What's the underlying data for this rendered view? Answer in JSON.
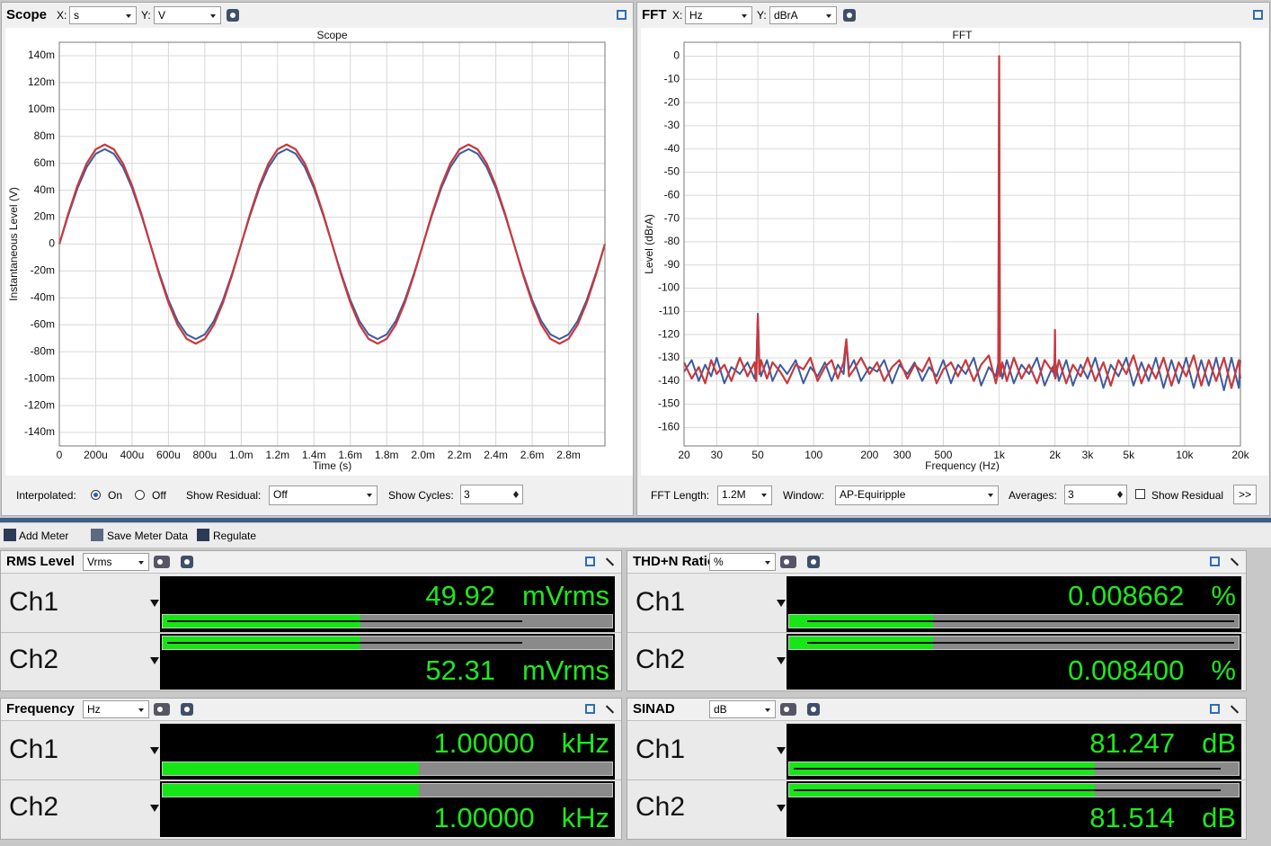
{
  "scope": {
    "title": "Scope",
    "x_label": "X:",
    "x_unit": "s",
    "y_label": "Y:",
    "y_unit": "V",
    "controls": {
      "interpolated": "Interpolated:",
      "on": "On",
      "off": "Off",
      "show_residual": "Show Residual:",
      "residual_value": "Off",
      "show_cycles": "Show Cycles:",
      "cycles_value": "3"
    },
    "chart_data": {
      "type": "line",
      "title": "Scope",
      "x_label": "Time (s)",
      "y_label": "Instantaneous Level (V)",
      "x": [
        0,
        5e-05,
        0.0001,
        0.00015,
        0.0002,
        0.00025,
        0.0003,
        0.00035,
        0.0004,
        0.00045,
        0.0005,
        0.00055,
        0.0006,
        0.00065,
        0.0007,
        0.00075,
        0.0008,
        0.00085,
        0.0009,
        0.00095,
        0.001,
        0.00105,
        0.0011,
        0.00115,
        0.0012,
        0.00125,
        0.0013,
        0.00135,
        0.0014,
        0.00145,
        0.0015,
        0.00155,
        0.0016,
        0.00165,
        0.0017,
        0.00175,
        0.0018,
        0.00185,
        0.0019,
        0.00195,
        0.002,
        0.00205,
        0.0021,
        0.00215,
        0.0022,
        0.00225,
        0.0023,
        0.00235,
        0.0024,
        0.00245,
        0.0025,
        0.00255,
        0.0026,
        0.00265,
        0.0027,
        0.00275,
        0.0028,
        0.00285,
        0.0029,
        0.00295,
        0.003
      ],
      "series": [
        {
          "color": "#3d5aa0",
          "values": [
            0,
            0.0218,
            0.0415,
            0.0571,
            0.0671,
            0.0706,
            0.0671,
            0.0571,
            0.0415,
            0.0218,
            0,
            -0.0218,
            -0.0415,
            -0.0571,
            -0.0671,
            -0.0706,
            -0.0671,
            -0.0571,
            -0.0415,
            -0.0218,
            0,
            0.0218,
            0.0415,
            0.0571,
            0.0671,
            0.0706,
            0.0671,
            0.0571,
            0.0415,
            0.0218,
            0,
            -0.0218,
            -0.0415,
            -0.0571,
            -0.0671,
            -0.0706,
            -0.0671,
            -0.0571,
            -0.0415,
            -0.0218,
            0,
            0.0218,
            0.0415,
            0.0571,
            0.0671,
            0.0706,
            0.0671,
            0.0571,
            0.0415,
            0.0218,
            0,
            -0.0218,
            -0.0415,
            -0.0571,
            -0.0671,
            -0.0706,
            -0.0671,
            -0.0571,
            -0.0415,
            -0.0218,
            0
          ]
        },
        {
          "color": "#c9383c",
          "values": [
            0,
            0.0229,
            0.0435,
            0.0599,
            0.0704,
            0.074,
            0.0704,
            0.0599,
            0.0435,
            0.0229,
            0,
            -0.0229,
            -0.0435,
            -0.0599,
            -0.0704,
            -0.074,
            -0.0704,
            -0.0599,
            -0.0435,
            -0.0229,
            0,
            0.0229,
            0.0435,
            0.0599,
            0.0704,
            0.074,
            0.0704,
            0.0599,
            0.0435,
            0.0229,
            0,
            -0.0229,
            -0.0435,
            -0.0599,
            -0.0704,
            -0.074,
            -0.0704,
            -0.0599,
            -0.0435,
            -0.0229,
            0,
            0.0229,
            0.0435,
            0.0599,
            0.0704,
            0.074,
            0.0704,
            0.0599,
            0.0435,
            0.0229,
            0,
            -0.0229,
            -0.0435,
            -0.0599,
            -0.0704,
            -0.074,
            -0.0704,
            -0.0599,
            -0.0435,
            -0.0229,
            0
          ]
        }
      ],
      "xlim": [
        0,
        0.003
      ],
      "ylim": [
        -0.15,
        0.15
      ],
      "xticks": [
        0,
        {
          "value": 0.0002,
          "label": "200u"
        },
        {
          "value": 0.0004,
          "label": "400u"
        },
        {
          "value": 0.0006,
          "label": "600u"
        },
        {
          "value": 0.0008,
          "label": "800u"
        },
        {
          "value": 0.001,
          "label": "1.0m"
        },
        {
          "value": 0.0012,
          "label": "1.2m"
        },
        {
          "value": 0.0014,
          "label": "1.4m"
        },
        {
          "value": 0.0016,
          "label": "1.6m"
        },
        {
          "value": 0.0018,
          "label": "1.8m"
        },
        {
          "value": 0.002,
          "label": "2.0m"
        },
        {
          "value": 0.0022,
          "label": "2.2m"
        },
        {
          "value": 0.0024,
          "label": "2.4m"
        },
        {
          "value": 0.0026,
          "label": "2.6m"
        },
        {
          "value": 0.0028,
          "label": "2.8m"
        }
      ],
      "yticks": [
        {
          "value": 0.14,
          "label": "140m"
        },
        {
          "value": 0.12,
          "label": "120m"
        },
        {
          "value": 0.1,
          "label": "100m"
        },
        {
          "value": 0.08,
          "label": "80m"
        },
        {
          "value": 0.06,
          "label": "60m"
        },
        {
          "value": 0.04,
          "label": "40m"
        },
        {
          "value": 0.02,
          "label": "20m"
        },
        0,
        {
          "value": -0.02,
          "label": "-20m"
        },
        {
          "value": -0.04,
          "label": "-40m"
        },
        {
          "value": -0.06,
          "label": "-60m"
        },
        {
          "value": -0.08,
          "label": "-80m"
        },
        {
          "value": -0.1,
          "label": "-100m"
        },
        {
          "value": -0.12,
          "label": "-120m"
        },
        {
          "value": -0.14,
          "label": "-140m"
        }
      ],
      "grid": true
    }
  },
  "fft": {
    "title": "FFT",
    "x_label": "X:",
    "x_unit": "Hz",
    "y_label": "Y:",
    "y_unit": "dBrA",
    "controls": {
      "fft_length": "FFT Length:",
      "fft_length_value": "1.2M",
      "window": "Window:",
      "window_value": "AP-Equiripple",
      "averages": "Averages:",
      "averages_value": "3",
      "show_residual": "Show Residual",
      "more": ">>"
    },
    "chart_data": {
      "type": "line",
      "title": "FFT",
      "x_label": "Frequency (Hz)",
      "y_label": "Level (dBrA)",
      "x_scale": "log",
      "x": [
        20,
        22,
        24,
        26,
        28,
        30,
        33,
        36,
        40,
        44,
        48,
        49,
        50,
        51,
        52,
        56,
        60,
        66,
        72,
        80,
        88,
        96,
        105,
        115,
        125,
        135,
        145,
        150,
        155,
        165,
        180,
        200,
        220,
        240,
        265,
        290,
        320,
        350,
        385,
        420,
        460,
        500,
        550,
        600,
        660,
        730,
        800,
        880,
        960,
        990,
        1000,
        1010,
        1040,
        1100,
        1200,
        1320,
        1450,
        1600,
        1760,
        1940,
        1990,
        2000,
        2010,
        2100,
        2300,
        2500,
        2750,
        3000,
        3300,
        3650,
        4000,
        4400,
        4850,
        5300,
        5850,
        6400,
        7000,
        7700,
        8500,
        9300,
        10200,
        11200,
        12300,
        13500,
        14800,
        16300,
        17900,
        19600,
        20000
      ],
      "series": [
        {
          "color": "#3d5aa0",
          "values": [
            -136,
            -131,
            -140,
            -133,
            -138,
            -130,
            -141,
            -134,
            -137,
            -132,
            -139,
            -134,
            -111,
            -133,
            -138,
            -131,
            -140,
            -133,
            -137,
            -131,
            -141,
            -134,
            -138,
            -132,
            -140,
            -133,
            -137,
            -123,
            -135,
            -131,
            -140,
            -134,
            -136,
            -131,
            -141,
            -133,
            -137,
            -132,
            -140,
            -134,
            -138,
            -131,
            -141,
            -133,
            -137,
            -130,
            -142,
            -134,
            -138,
            -132,
            0,
            -133,
            -139,
            -131,
            -141,
            -133,
            -137,
            -130,
            -142,
            -134,
            -138,
            -121,
            -132,
            -140,
            -131,
            -142,
            -133,
            -139,
            -130,
            -143,
            -133,
            -138,
            -130,
            -142,
            -132,
            -140,
            -130,
            -143,
            -131,
            -141,
            -130,
            -143,
            -131,
            -142,
            -130,
            -144,
            -130,
            -143,
            -131
          ]
        },
        {
          "color": "#c9383c",
          "values": [
            -132,
            -139,
            -134,
            -141,
            -131,
            -137,
            -133,
            -140,
            -130,
            -138,
            -132,
            -140,
            -112,
            -137,
            -131,
            -139,
            -132,
            -136,
            -141,
            -133,
            -135,
            -130,
            -140,
            -134,
            -131,
            -139,
            -132,
            -122,
            -138,
            -135,
            -130,
            -137,
            -132,
            -140,
            -134,
            -131,
            -139,
            -133,
            -136,
            -130,
            -141,
            -135,
            -132,
            -138,
            -131,
            -140,
            -133,
            -129,
            -141,
            -136,
            0,
            -138,
            -132,
            -140,
            -130,
            -139,
            -133,
            -141,
            -131,
            -136,
            -132,
            -118,
            -139,
            -131,
            -141,
            -133,
            -138,
            -130,
            -140,
            -132,
            -142,
            -131,
            -137,
            -129,
            -141,
            -133,
            -139,
            -130,
            -142,
            -132,
            -138,
            -129,
            -142,
            -131,
            -140,
            -130,
            -143,
            -131,
            -139
          ]
        }
      ],
      "xlim": [
        20,
        20000
      ],
      "ylim": [
        -168,
        6
      ],
      "xticks": [
        20,
        30,
        50,
        100,
        200,
        300,
        500,
        {
          "value": 1000,
          "label": "1k"
        },
        {
          "value": 2000,
          "label": "2k"
        },
        {
          "value": 3000,
          "label": "3k"
        },
        {
          "value": 5000,
          "label": "5k"
        },
        {
          "value": 10000,
          "label": "10k"
        },
        {
          "value": 20000,
          "label": "20k"
        }
      ],
      "yticks": [
        0,
        -10,
        -20,
        -30,
        -40,
        -50,
        -60,
        -70,
        -80,
        -90,
        -100,
        -110,
        -120,
        -130,
        -140,
        -150,
        -160
      ],
      "grid": true
    }
  },
  "toolbar": {
    "add_meter": "Add Meter",
    "save": "Save Meter Data",
    "regulate": "Regulate"
  },
  "meters": [
    {
      "title": "RMS Level",
      "unit": "Vrms",
      "channels": [
        {
          "name": "Ch1",
          "value": "49.92",
          "unit": "mVrms"
        },
        {
          "name": "Ch2",
          "value": "52.31",
          "unit": "mVrms"
        }
      ]
    },
    {
      "title": "THD+N Ratio",
      "unit": "%",
      "channels": [
        {
          "name": "Ch1",
          "value": "0.008662",
          "unit": "%"
        },
        {
          "name": "Ch2",
          "value": "0.008400",
          "unit": "%"
        }
      ]
    },
    {
      "title": "Frequency",
      "unit": "Hz",
      "channels": [
        {
          "name": "Ch1",
          "value": "1.00000",
          "unit": "kHz"
        },
        {
          "name": "Ch2",
          "value": "1.00000",
          "unit": "kHz"
        }
      ]
    },
    {
      "title": "SINAD",
      "unit": "dB",
      "channels": [
        {
          "name": "Ch1",
          "value": "81.247",
          "unit": "dB"
        },
        {
          "name": "Ch2",
          "value": "81.514",
          "unit": "dB"
        }
      ]
    }
  ]
}
